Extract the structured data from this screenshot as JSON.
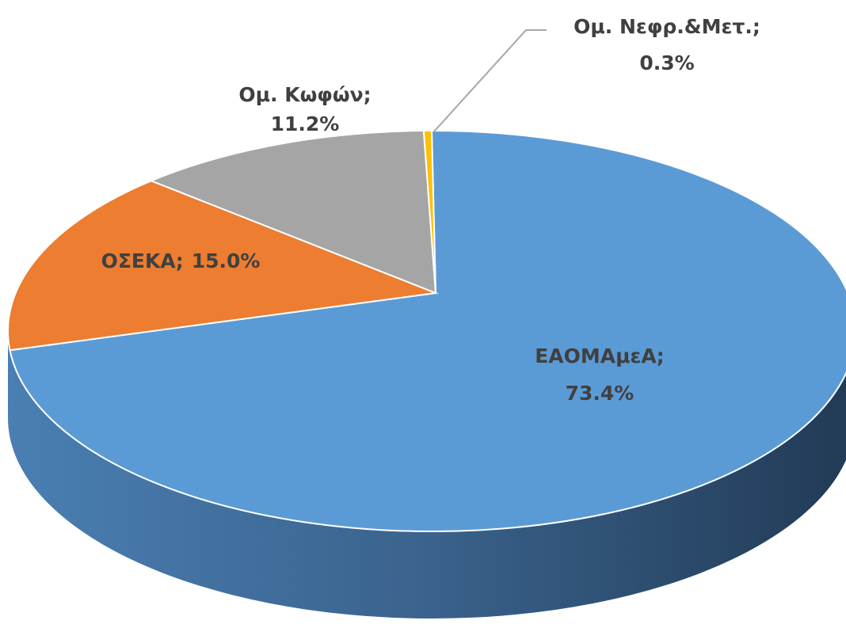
{
  "chart_data": {
    "type": "pie",
    "categories": [
      "ΕΑΟΜΑμεΑ",
      "ΟΣΕΚΑ",
      "Ομ. Κωφών",
      "Ομ. Νεφρ.&Μετ."
    ],
    "values": [
      73.4,
      15.0,
      11.2,
      0.3
    ],
    "value_labels": [
      "73.4%",
      "15.0%",
      "11.2%",
      "0.3%"
    ],
    "label_separator": ";",
    "colors": [
      "#5b9bd5",
      "#ed7d31",
      "#a5a5a5",
      "#ffc000"
    ]
  }
}
